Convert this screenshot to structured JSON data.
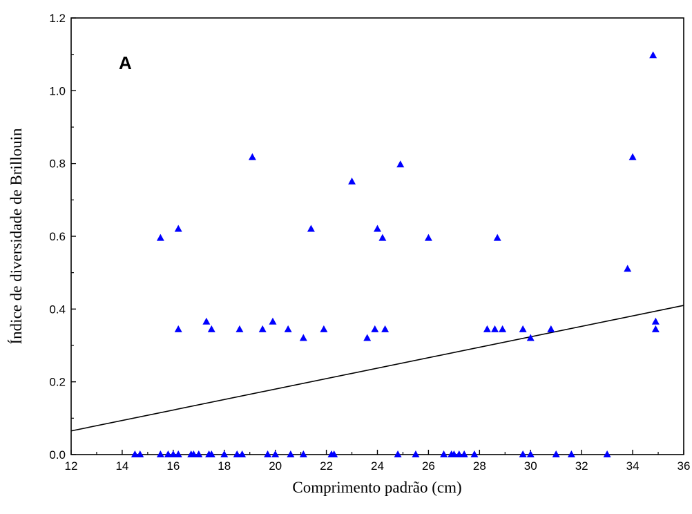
{
  "chart_data": {
    "type": "scatter",
    "panel_label": "A",
    "xlabel": "Comprimento padrão (cm)",
    "ylabel": "Índice de diversidade de Brillouin",
    "xlim": [
      12,
      36
    ],
    "ylim": [
      0,
      1.2
    ],
    "xticks": [
      "12",
      "14",
      "16",
      "18",
      "20",
      "22",
      "24",
      "26",
      "28",
      "30",
      "32",
      "34",
      "36"
    ],
    "yticks": [
      "0.0",
      "0.2",
      "0.4",
      "0.6",
      "0.8",
      "1.0",
      "1.2"
    ],
    "grid": false,
    "marker": "triangle",
    "marker_color": "#0000ff",
    "line_color": "#000000",
    "points": [
      [
        14.5,
        0
      ],
      [
        14.7,
        0
      ],
      [
        15.5,
        0
      ],
      [
        15.8,
        0
      ],
      [
        16.0,
        0
      ],
      [
        16.2,
        0
      ],
      [
        16.7,
        0
      ],
      [
        16.8,
        0
      ],
      [
        17.0,
        0
      ],
      [
        17.4,
        0
      ],
      [
        17.5,
        0
      ],
      [
        18.0,
        0
      ],
      [
        18.5,
        0
      ],
      [
        18.7,
        0
      ],
      [
        19.7,
        0
      ],
      [
        20.0,
        0
      ],
      [
        20.6,
        0
      ],
      [
        21.1,
        0
      ],
      [
        22.2,
        0
      ],
      [
        22.3,
        0
      ],
      [
        24.8,
        0
      ],
      [
        25.5,
        0
      ],
      [
        26.6,
        0
      ],
      [
        26.9,
        0
      ],
      [
        27.0,
        0
      ],
      [
        27.2,
        0
      ],
      [
        27.4,
        0
      ],
      [
        27.8,
        0
      ],
      [
        29.7,
        0
      ],
      [
        30.0,
        0
      ],
      [
        31.0,
        0
      ],
      [
        31.6,
        0
      ],
      [
        33.0,
        0
      ],
      [
        16.2,
        0.344
      ],
      [
        17.3,
        0.365
      ],
      [
        17.5,
        0.344
      ],
      [
        18.6,
        0.344
      ],
      [
        19.5,
        0.344
      ],
      [
        19.9,
        0.365
      ],
      [
        20.5,
        0.344
      ],
      [
        21.1,
        0.32
      ],
      [
        21.9,
        0.344
      ],
      [
        23.6,
        0.32
      ],
      [
        23.9,
        0.344
      ],
      [
        24.3,
        0.344
      ],
      [
        28.3,
        0.344
      ],
      [
        28.6,
        0.344
      ],
      [
        28.9,
        0.344
      ],
      [
        29.7,
        0.344
      ],
      [
        30.0,
        0.32
      ],
      [
        30.8,
        0.344
      ],
      [
        34.9,
        0.365
      ],
      [
        34.9,
        0.344
      ],
      [
        15.5,
        0.595
      ],
      [
        16.2,
        0.62
      ],
      [
        21.4,
        0.62
      ],
      [
        24.0,
        0.62
      ],
      [
        24.2,
        0.595
      ],
      [
        26.0,
        0.595
      ],
      [
        28.7,
        0.595
      ],
      [
        33.8,
        0.51
      ],
      [
        19.1,
        0.817
      ],
      [
        23.0,
        0.75
      ],
      [
        24.9,
        0.797
      ],
      [
        34.0,
        0.817
      ],
      [
        34.8,
        1.097
      ]
    ],
    "fit_line": {
      "x": [
        12,
        36
      ],
      "y": [
        0.065,
        0.41
      ]
    }
  }
}
